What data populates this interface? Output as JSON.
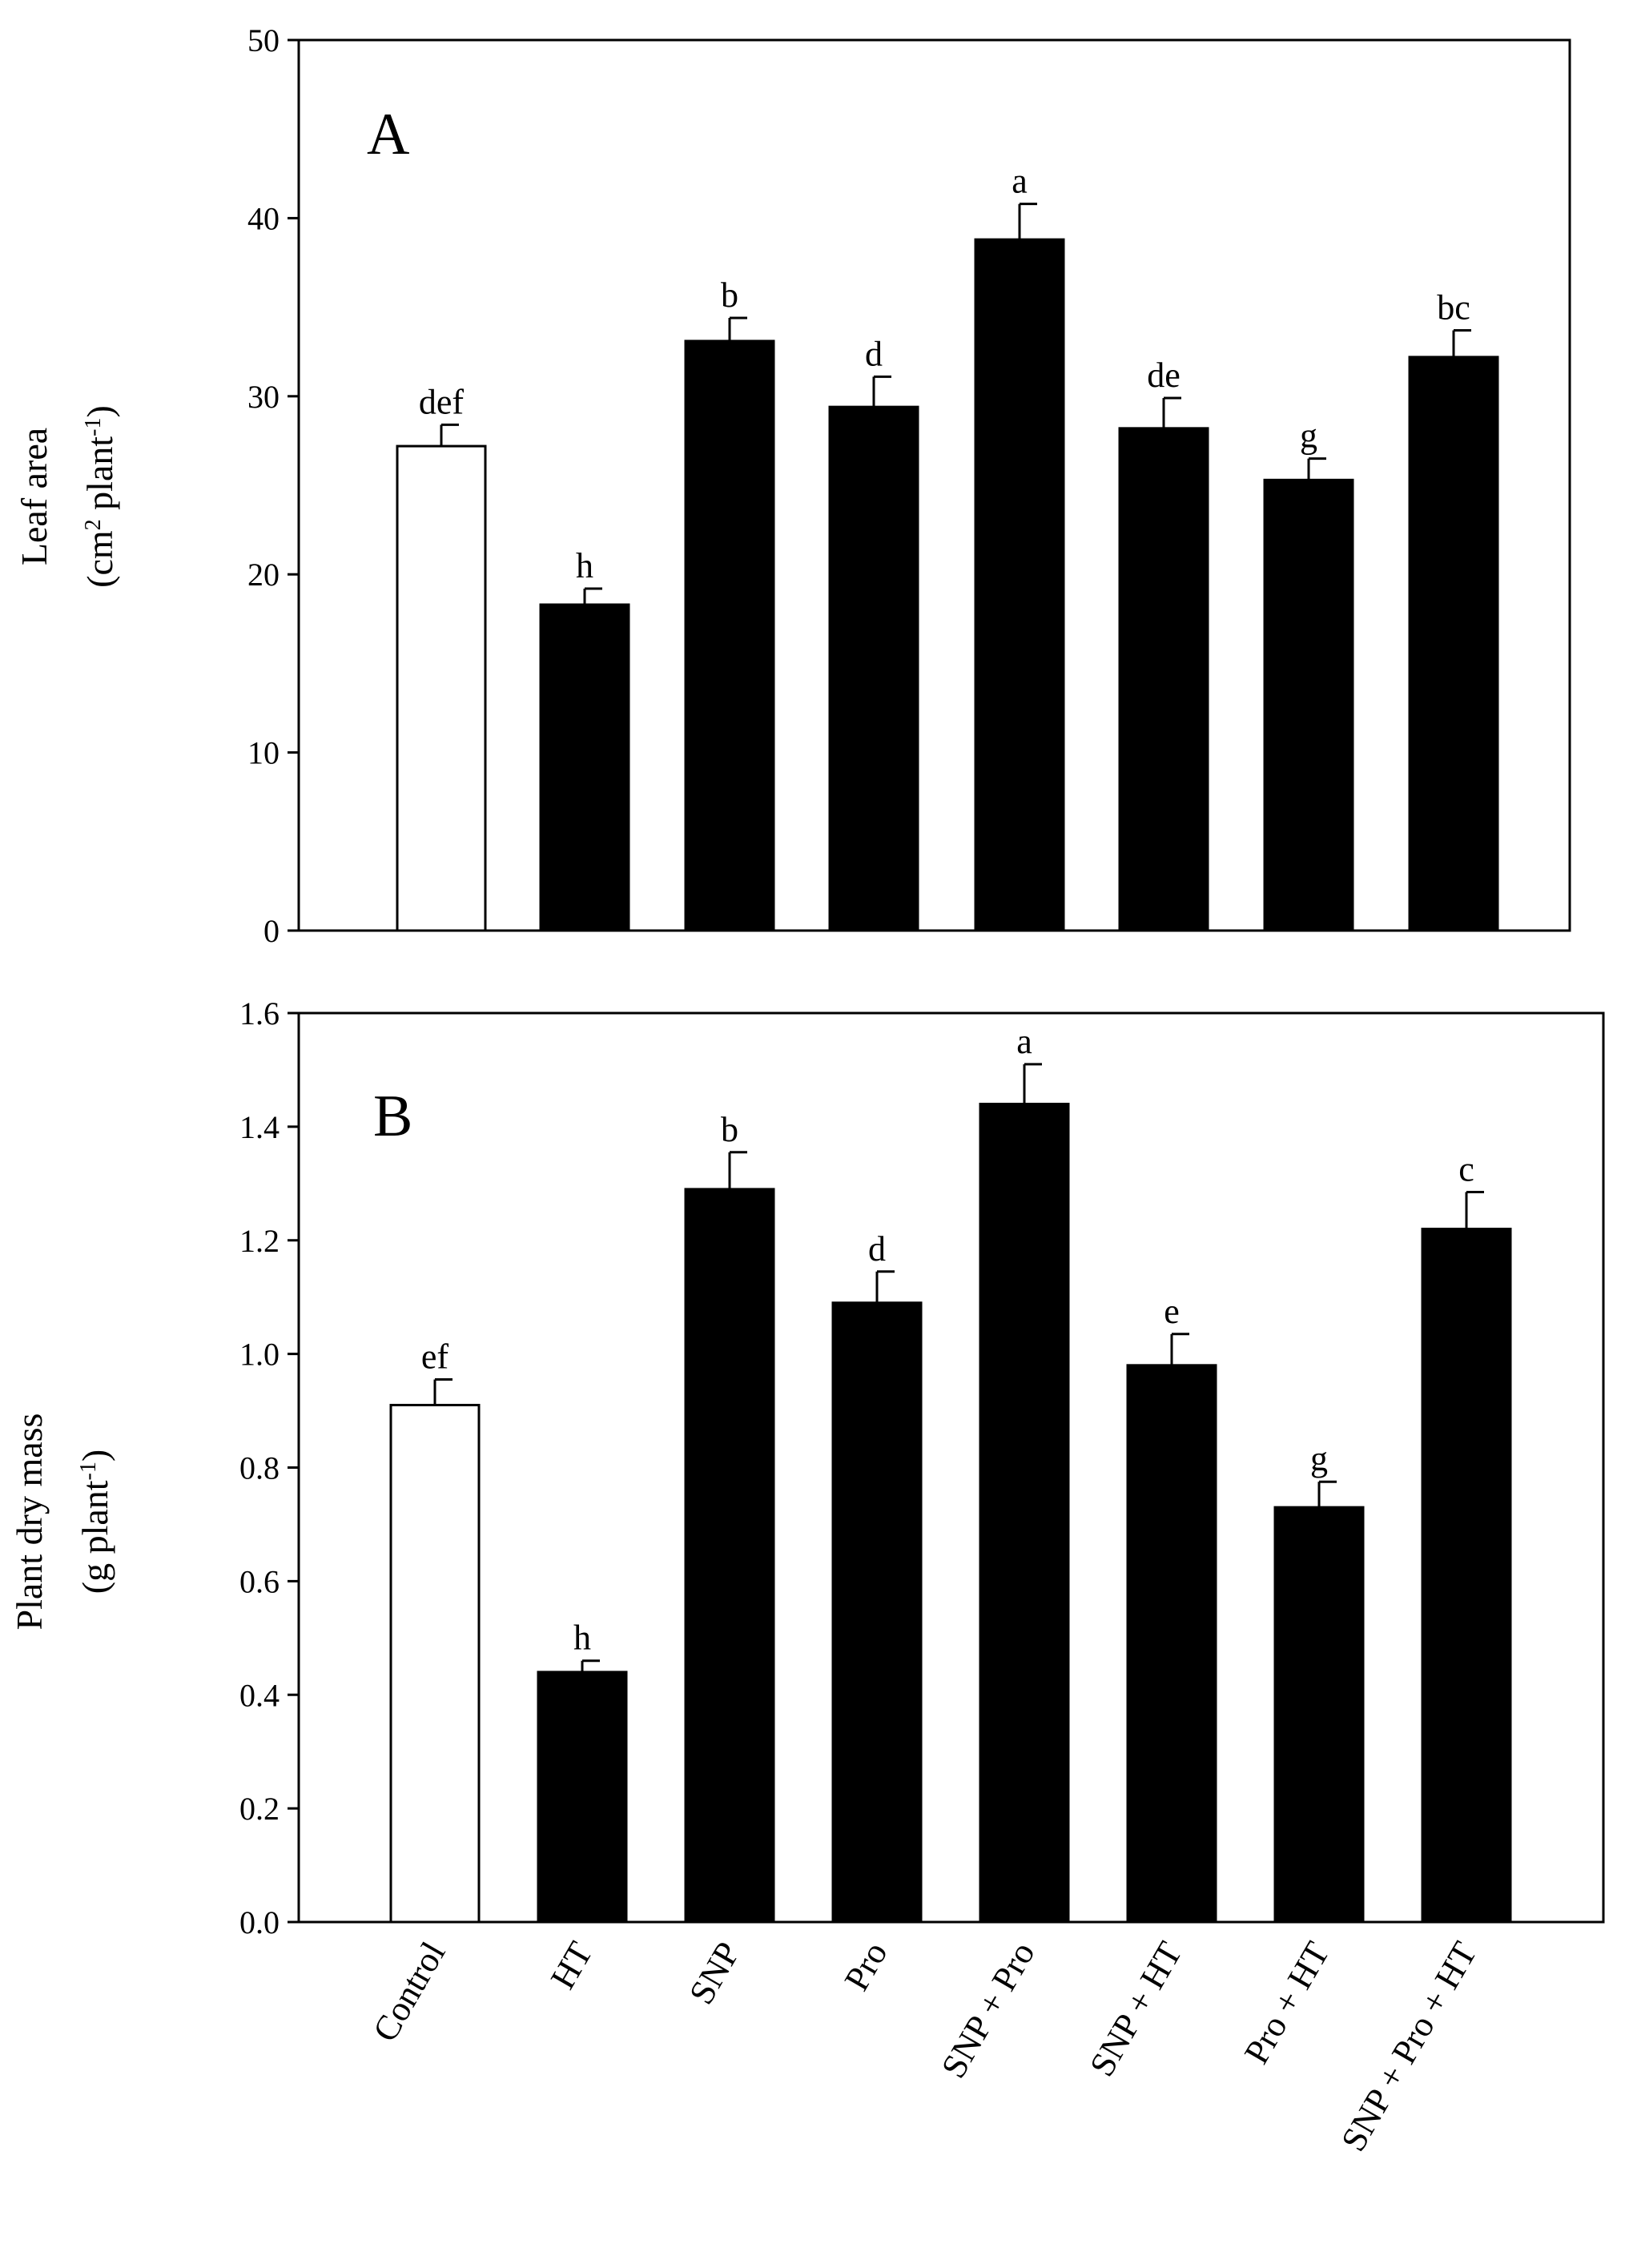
{
  "chart_data": [
    {
      "type": "bar",
      "panel_label": "A",
      "title": "",
      "xlabel": "",
      "ylabel_line1": "Leaf area",
      "ylabel_line2": {
        "prefix": "(cm",
        "sup1": "2",
        "middle": " plant",
        "sup2": "-1",
        "suffix": ")"
      },
      "ylim": [
        0,
        50
      ],
      "yticks": [
        0,
        10,
        20,
        30,
        40,
        50
      ],
      "ytick_labels": [
        "0",
        "10",
        "20",
        "30",
        "40",
        "50"
      ],
      "categories": [
        "Control",
        "HT",
        "SNP",
        "Pro",
        "SNP + Pro",
        "SNP + HT",
        "Pro + HT",
        "SNP + Pro + HT"
      ],
      "values": [
        27.2,
        18.3,
        33.1,
        29.4,
        38.8,
        28.2,
        25.3,
        32.2
      ],
      "errors": [
        1.2,
        0.9,
        1.3,
        1.7,
        2.0,
        1.7,
        1.2,
        1.5
      ],
      "significance": [
        "def",
        "h",
        "b",
        "d",
        "a",
        "de",
        "g",
        "bc"
      ],
      "bar_fill": [
        "#ffffff",
        "#000000",
        "#000000",
        "#000000",
        "#000000",
        "#000000",
        "#000000",
        "#000000"
      ]
    },
    {
      "type": "bar",
      "panel_label": "B",
      "title": "",
      "xlabel": "",
      "ylabel_line1": "Plant dry mass",
      "ylabel_line2": {
        "prefix": "(g plant",
        "sup1": "-1",
        "middle": "",
        "sup2": "",
        "suffix": ")"
      },
      "ylim": [
        0,
        1.6
      ],
      "yticks": [
        0,
        0.2,
        0.4,
        0.6,
        0.8,
        1.0,
        1.2,
        1.4,
        1.6
      ],
      "ytick_labels": [
        "0.0",
        "0.2",
        "0.4",
        "0.6",
        "0.8",
        "1.0",
        "1.2",
        "1.4",
        "1.6"
      ],
      "categories": [
        "Control",
        "HT",
        "SNP",
        "Pro",
        "SNP + Pro",
        "SNP + HT",
        "Pro + HT",
        "SNP + Pro + HT"
      ],
      "values": [
        0.91,
        0.44,
        1.29,
        1.09,
        1.44,
        0.98,
        0.73,
        1.22
      ],
      "errors": [
        0.045,
        0.02,
        0.065,
        0.055,
        0.07,
        0.055,
        0.045,
        0.065
      ],
      "significance": [
        "ef",
        "h",
        "b",
        "d",
        "a",
        "e",
        "g",
        "c"
      ],
      "bar_fill": [
        "#ffffff",
        "#000000",
        "#000000",
        "#000000",
        "#000000",
        "#000000",
        "#000000",
        "#000000"
      ]
    }
  ]
}
